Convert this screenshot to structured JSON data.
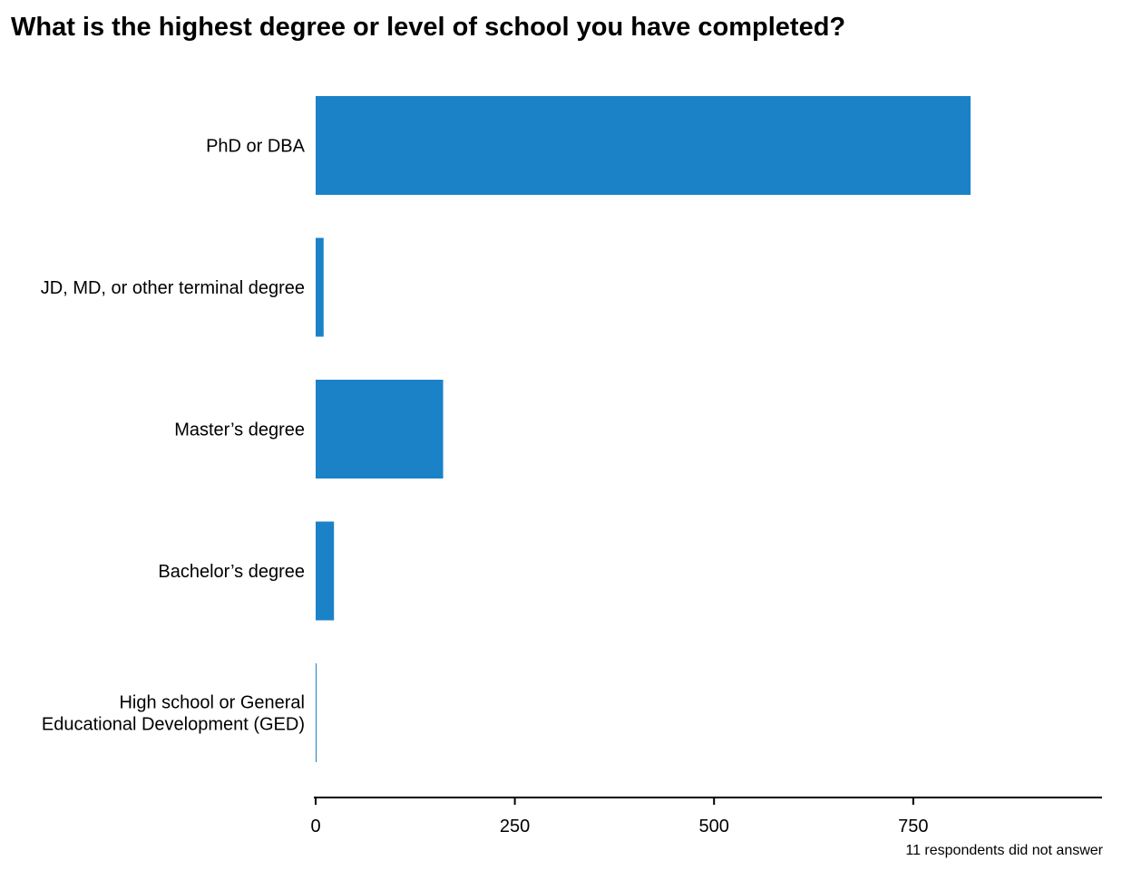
{
  "chart_data": {
    "type": "bar",
    "orientation": "horizontal",
    "title": "What is the highest degree or level of school you have completed?",
    "categories": [
      "PhD or DBA",
      "JD, MD, or other terminal degree",
      "Master’s degree",
      "Bachelor’s degree",
      "High school or General Educational Development (GED)"
    ],
    "values": [
      822,
      10,
      160,
      23,
      1
    ],
    "xlabel": "",
    "ylabel": "",
    "xlim": [
      0,
      987
    ],
    "xticks": [
      "0",
      "250",
      "500",
      "750"
    ],
    "grid": false,
    "legend": "none",
    "bar_color": "#1b82c8",
    "note": "11 respondents did not answer"
  }
}
